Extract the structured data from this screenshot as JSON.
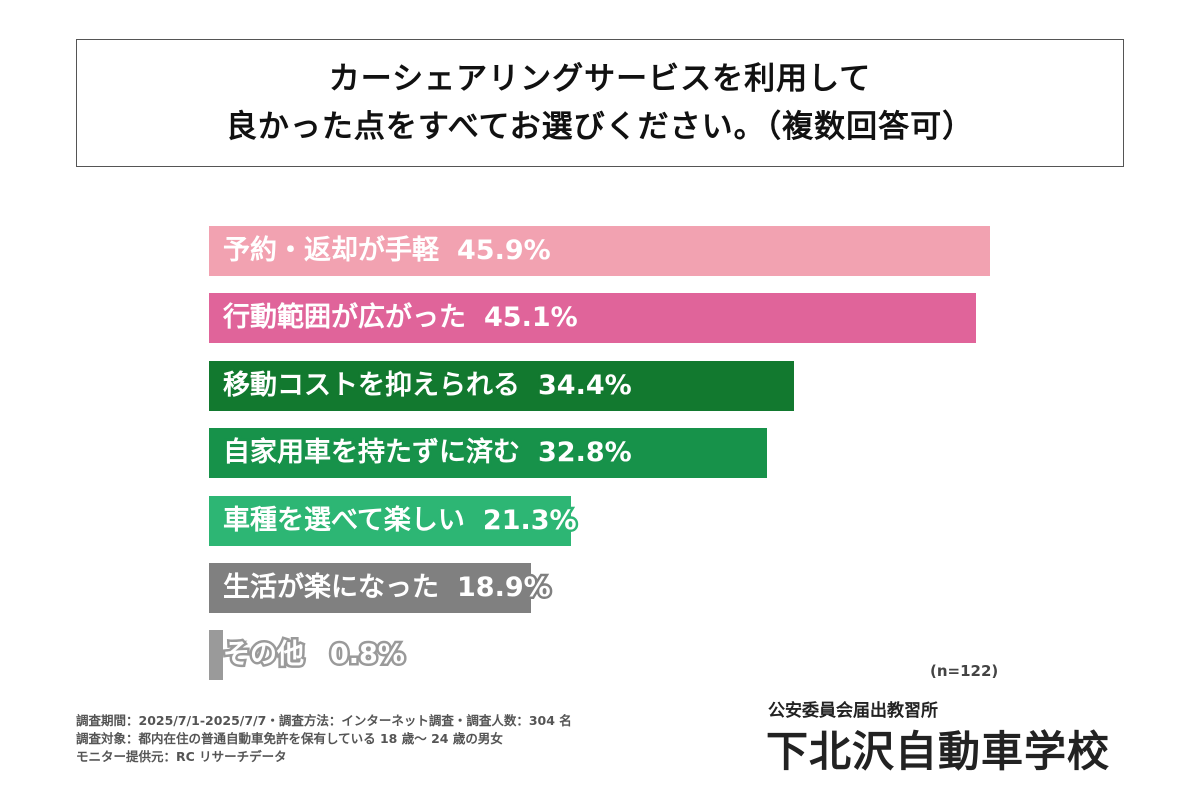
{
  "chart_data": {
    "type": "bar",
    "orientation": "horizontal",
    "title_lines": [
      "カーシェアリングサービスを利用して",
      "良かった点をすべてお選びください。（複数回答可）"
    ],
    "categories": [
      "予約・返却が手軽",
      "行動範囲が広がった",
      "移動コストを抑えられる",
      "自家用車を持たずに済む",
      "車種を選べて楽しい",
      "生活が楽になった",
      "その他"
    ],
    "values": [
      45.9,
      45.1,
      34.4,
      32.8,
      21.3,
      18.9,
      0.8
    ],
    "value_labels": [
      "45.9%",
      "45.1%",
      "34.4%",
      "32.8%",
      "21.3%",
      "18.9%",
      "0.8%"
    ],
    "colors": [
      "#f2a2b1",
      "#e0649a",
      "#12792f",
      "#17924a",
      "#2db674",
      "#808080",
      "#9a9a9a"
    ],
    "unit": "%",
    "xlim": [
      0,
      45.9
    ],
    "grid": false,
    "sample_note": "(n=122)"
  },
  "footer": {
    "notes": [
      "調査期間：2025/7/1-2025/7/7・調査方法：インターネット調査・調査人数：304 名",
      "調査対象：都内在住の普通自動車免許を保有している 18 歳～ 24 歳の男女",
      "モニター提供元：RC リサーチデータ"
    ]
  },
  "logo": {
    "sub": "公安委員会届出教習所",
    "main": "下北沢自動車学校"
  }
}
